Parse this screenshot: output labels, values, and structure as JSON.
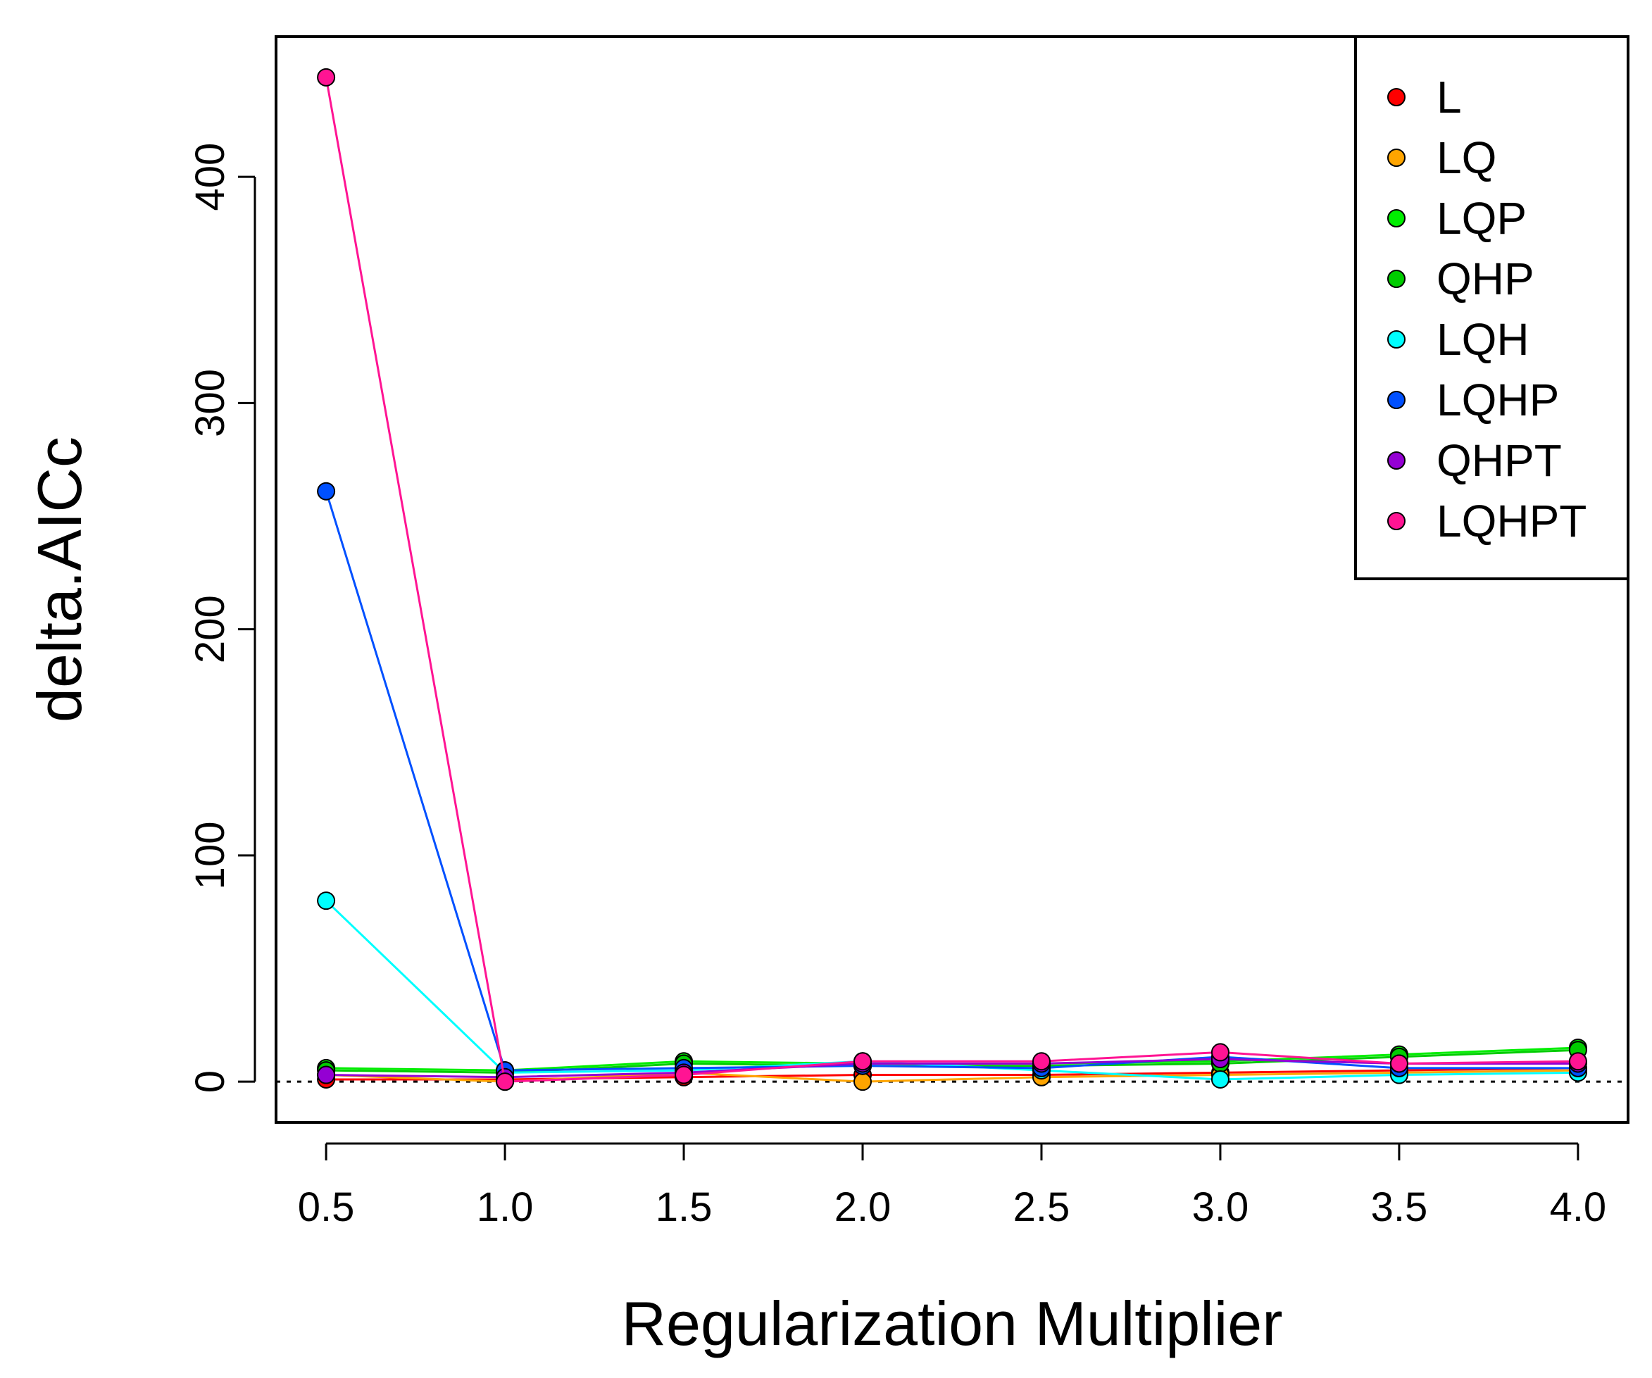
{
  "chart_data": {
    "type": "line",
    "title": "",
    "xlabel": "Regularization Multiplier",
    "ylabel": "delta.AICc",
    "x": [
      0.5,
      1.0,
      1.5,
      2.0,
      2.5,
      3.0,
      3.5,
      4.0
    ],
    "x_tick_labels": [
      "0.5",
      "1.0",
      "1.5",
      "2.0",
      "2.5",
      "3.0",
      "3.5",
      "4.0"
    ],
    "y_ticks": [
      0,
      100,
      200,
      300,
      400
    ],
    "y_tick_labels": [
      "0",
      "100",
      "200",
      "300",
      "400"
    ],
    "xlim": [
      0.36,
      4.14
    ],
    "ylim": [
      -18,
      462
    ],
    "reference_line": 0,
    "legend_position": "top-right",
    "grid": false,
    "series": [
      {
        "name": "L",
        "color": "#ff0000",
        "values": [
          1,
          1,
          2,
          3,
          3,
          4,
          5,
          6
        ]
      },
      {
        "name": "LQ",
        "color": "#ffa500",
        "values": [
          3,
          0,
          4,
          0,
          2,
          3,
          4,
          5
        ]
      },
      {
        "name": "LQP",
        "color": "#00ee00",
        "values": [
          6,
          5,
          9,
          8,
          8,
          9,
          12,
          15
        ]
      },
      {
        "name": "QHP",
        "color": "#00cc00",
        "values": [
          5,
          4,
          8,
          7,
          7,
          8,
          11,
          14
        ]
      },
      {
        "name": "LQH",
        "color": "#00ffff",
        "values": [
          80,
          4,
          5,
          9,
          5,
          1,
          3,
          4
        ]
      },
      {
        "name": "LQHP",
        "color": "#0050ff",
        "values": [
          261,
          5,
          6,
          7,
          6,
          11,
          6,
          6
        ]
      },
      {
        "name": "QHPT",
        "color": "#9400d3",
        "values": [
          3,
          2,
          4,
          8,
          8,
          10,
          8,
          8
        ]
      },
      {
        "name": "LQHPT",
        "color": "#ff1493",
        "values": [
          444,
          0,
          3,
          9,
          9,
          13,
          8,
          9
        ]
      }
    ]
  }
}
